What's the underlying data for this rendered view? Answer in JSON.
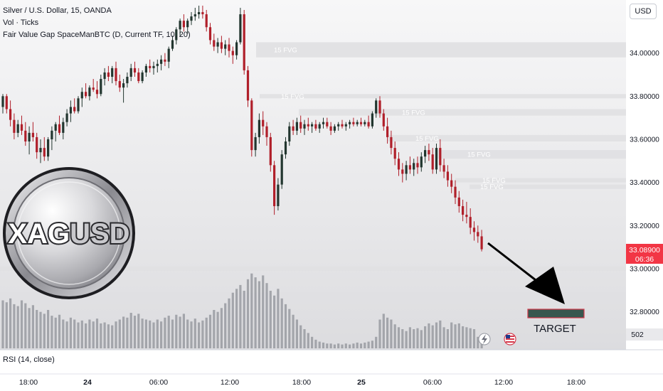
{
  "legend": {
    "symbol": "Silver / U.S. Dollar, 15, OANDA",
    "volume": "Vol · Ticks",
    "indicator": "Fair Value Gap SpaceManBTC (D, Current TF, 10, 20)",
    "rsi": "RSI (14, close)"
  },
  "currency_button": "USD",
  "price_axis": {
    "ticks": [
      "34.00000",
      "33.80000",
      "33.60000",
      "33.40000",
      "33.20000",
      "33.00000",
      "32.80000"
    ],
    "current_price": "33.08900",
    "countdown": "06:36",
    "volume_value": "502"
  },
  "time_axis": {
    "ticks": [
      "18:00",
      "24",
      "06:00",
      "12:00",
      "18:00",
      "25",
      "06:00",
      "12:00",
      "18:00"
    ]
  },
  "logo_text": {
    "part1": "XAG",
    "part2": "USD"
  },
  "target_label": "TARGET",
  "colors": {
    "background": "#ffffff",
    "up_candle": "#22362f",
    "down_candle": "#b01f2a",
    "fvg_zone": "#e0e0e2",
    "fvg_text": "#ffffff",
    "price_label": "#f23645",
    "target_box": "#37574f",
    "target_border": "#d5394b",
    "arrow": "#000000",
    "volume": "#8f9298"
  },
  "chart_data": {
    "type": "candlestick",
    "interval": "15",
    "ylim": [
      32.67,
      34.2
    ],
    "fvg_zones": [
      {
        "label": "15 FVG",
        "low": 33.98,
        "high": 34.05
      },
      {
        "label": "15 FVG",
        "low": 33.79,
        "high": 33.81
      },
      {
        "label": "15 FVG",
        "low": 33.71,
        "high": 33.74
      },
      {
        "label": "15 FVG",
        "low": 33.59,
        "high": 33.62
      },
      {
        "label": "15 FVG",
        "low": 33.51,
        "high": 33.55
      },
      {
        "label": "15 FVG",
        "low": 33.4,
        "high": 33.42
      },
      {
        "label": "15 FVG",
        "low": 33.37,
        "high": 33.39
      },
      {
        "label": "",
        "low": 32.99,
        "high": 33.01
      },
      {
        "label": "",
        "low": 32.84,
        "high": 32.89
      }
    ],
    "last_price": 33.089,
    "target_price": 32.79,
    "candles": [
      [
        33.75,
        33.81,
        33.72,
        33.8
      ],
      [
        33.8,
        33.81,
        33.72,
        33.74
      ],
      [
        33.74,
        33.78,
        33.66,
        33.69
      ],
      [
        33.69,
        33.72,
        33.6,
        33.63
      ],
      [
        33.63,
        33.69,
        33.61,
        33.67
      ],
      [
        33.67,
        33.71,
        33.62,
        33.64
      ],
      [
        33.64,
        33.68,
        33.57,
        33.59
      ],
      [
        33.59,
        33.66,
        33.53,
        33.63
      ],
      [
        33.63,
        33.68,
        33.59,
        33.61
      ],
      [
        33.61,
        33.63,
        33.51,
        33.54
      ],
      [
        33.54,
        33.6,
        33.49,
        33.56
      ],
      [
        33.56,
        33.61,
        33.5,
        33.52
      ],
      [
        33.52,
        33.61,
        33.5,
        33.6
      ],
      [
        33.6,
        33.66,
        33.55,
        33.64
      ],
      [
        33.64,
        33.68,
        33.59,
        33.67
      ],
      [
        33.67,
        33.71,
        33.62,
        33.63
      ],
      [
        33.63,
        33.7,
        33.6,
        33.68
      ],
      [
        33.68,
        33.74,
        33.66,
        33.72
      ],
      [
        33.72,
        33.78,
        33.68,
        33.75
      ],
      [
        33.75,
        33.79,
        33.72,
        33.73
      ],
      [
        33.73,
        33.8,
        33.72,
        33.79
      ],
      [
        33.79,
        33.84,
        33.75,
        33.82
      ],
      [
        33.82,
        33.86,
        33.79,
        33.8
      ],
      [
        33.8,
        33.85,
        33.78,
        33.84
      ],
      [
        33.84,
        33.88,
        33.82,
        33.83
      ],
      [
        33.83,
        33.87,
        33.79,
        33.81
      ],
      [
        33.81,
        33.9,
        33.8,
        33.88
      ],
      [
        33.88,
        33.93,
        33.85,
        33.91
      ],
      [
        33.91,
        33.94,
        33.87,
        33.89
      ],
      [
        33.89,
        33.94,
        33.86,
        33.93
      ],
      [
        33.93,
        33.96,
        33.85,
        33.87
      ],
      [
        33.87,
        33.9,
        33.82,
        33.84
      ],
      [
        33.84,
        33.88,
        33.77,
        33.86
      ],
      [
        33.86,
        33.91,
        33.84,
        33.89
      ],
      [
        33.89,
        33.95,
        33.87,
        33.93
      ],
      [
        33.93,
        33.96,
        33.89,
        33.91
      ],
      [
        33.91,
        33.93,
        33.86,
        33.87
      ],
      [
        33.87,
        33.92,
        33.86,
        33.91
      ],
      [
        33.91,
        33.95,
        33.89,
        33.94
      ],
      [
        33.94,
        33.97,
        33.91,
        33.93
      ],
      [
        33.93,
        33.96,
        33.9,
        33.94
      ],
      [
        33.94,
        33.97,
        33.91,
        33.95
      ],
      [
        33.95,
        33.99,
        33.92,
        33.97
      ],
      [
        33.97,
        34.0,
        33.94,
        33.96
      ],
      [
        33.96,
        34.03,
        33.93,
        34.02
      ],
      [
        34.02,
        34.08,
        34.01,
        34.06
      ],
      [
        34.06,
        34.12,
        34.04,
        34.11
      ],
      [
        34.11,
        34.16,
        34.08,
        34.15
      ],
      [
        34.15,
        34.18,
        34.1,
        34.12
      ],
      [
        34.12,
        34.16,
        34.09,
        34.15
      ],
      [
        34.15,
        34.19,
        34.13,
        34.17
      ],
      [
        34.17,
        34.21,
        34.15,
        34.18
      ],
      [
        34.18,
        34.22,
        34.16,
        34.19
      ],
      [
        34.19,
        34.22,
        34.16,
        34.18
      ],
      [
        34.18,
        34.2,
        34.1,
        34.12
      ],
      [
        34.12,
        34.14,
        34.04,
        34.06
      ],
      [
        34.06,
        34.09,
        34.01,
        34.03
      ],
      [
        34.03,
        34.07,
        34.0,
        34.05
      ],
      [
        34.05,
        34.08,
        34.0,
        34.02
      ],
      [
        34.02,
        34.06,
        33.99,
        34.04
      ],
      [
        34.04,
        34.07,
        33.98,
        34.01
      ],
      [
        34.01,
        34.03,
        33.95,
        33.99
      ],
      [
        33.99,
        34.06,
        33.97,
        34.05
      ],
      [
        34.05,
        34.21,
        34.04,
        34.18
      ],
      [
        34.18,
        34.2,
        33.9,
        33.92
      ],
      [
        33.92,
        33.94,
        33.75,
        33.78
      ],
      [
        33.78,
        33.79,
        33.52,
        33.55
      ],
      [
        33.55,
        33.63,
        33.52,
        33.61
      ],
      [
        33.61,
        33.72,
        33.58,
        33.69
      ],
      [
        33.69,
        33.73,
        33.62,
        33.66
      ],
      [
        33.66,
        33.68,
        33.57,
        33.61
      ],
      [
        33.61,
        33.63,
        33.45,
        33.48
      ],
      [
        33.48,
        33.5,
        33.25,
        33.29
      ],
      [
        33.29,
        33.42,
        33.27,
        33.39
      ],
      [
        33.39,
        33.55,
        33.37,
        33.53
      ],
      [
        33.53,
        33.61,
        33.51,
        33.59
      ],
      [
        33.59,
        33.68,
        33.57,
        33.66
      ],
      [
        33.66,
        33.69,
        33.62,
        33.64
      ],
      [
        33.64,
        33.7,
        33.62,
        33.68
      ],
      [
        33.68,
        33.71,
        33.63,
        33.65
      ],
      [
        33.65,
        33.69,
        33.62,
        33.67
      ],
      [
        33.67,
        33.7,
        33.64,
        33.66
      ],
      [
        33.66,
        33.68,
        33.63,
        33.67
      ],
      [
        33.67,
        33.69,
        33.64,
        33.65
      ],
      [
        33.65,
        33.68,
        33.63,
        33.67
      ],
      [
        33.67,
        33.7,
        33.65,
        33.68
      ],
      [
        33.68,
        33.7,
        33.65,
        33.66
      ],
      [
        33.66,
        33.68,
        33.62,
        33.64
      ],
      [
        33.64,
        33.67,
        33.63,
        33.66
      ],
      [
        33.66,
        33.68,
        33.64,
        33.67
      ],
      [
        33.67,
        33.69,
        33.65,
        33.66
      ],
      [
        33.66,
        33.68,
        33.64,
        33.67
      ],
      [
        33.67,
        33.69,
        33.65,
        33.68
      ],
      [
        33.68,
        33.7,
        33.66,
        33.67
      ],
      [
        33.67,
        33.69,
        33.66,
        33.68
      ],
      [
        33.68,
        33.7,
        33.66,
        33.67
      ],
      [
        33.67,
        33.69,
        33.66,
        33.68
      ],
      [
        33.68,
        33.71,
        33.65,
        33.66
      ],
      [
        33.66,
        33.73,
        33.65,
        33.72
      ],
      [
        33.72,
        33.79,
        33.7,
        33.78
      ],
      [
        33.78,
        33.8,
        33.7,
        33.72
      ],
      [
        33.72,
        33.74,
        33.64,
        33.66
      ],
      [
        33.66,
        33.7,
        33.58,
        33.61
      ],
      [
        33.61,
        33.64,
        33.53,
        33.56
      ],
      [
        33.56,
        33.59,
        33.48,
        33.51
      ],
      [
        33.51,
        33.54,
        33.43,
        33.46
      ],
      [
        33.46,
        33.49,
        33.4,
        33.44
      ],
      [
        33.44,
        33.5,
        33.41,
        33.48
      ],
      [
        33.48,
        33.52,
        33.44,
        33.46
      ],
      [
        33.46,
        33.51,
        33.43,
        33.49
      ],
      [
        33.49,
        33.52,
        33.44,
        33.47
      ],
      [
        33.47,
        33.54,
        33.45,
        33.52
      ],
      [
        33.52,
        33.57,
        33.49,
        33.55
      ],
      [
        33.55,
        33.58,
        33.5,
        33.53
      ],
      [
        33.53,
        33.56,
        33.44,
        33.46
      ],
      [
        33.46,
        33.58,
        33.44,
        33.56
      ],
      [
        33.56,
        33.6,
        33.45,
        33.48
      ],
      [
        33.48,
        33.51,
        33.42,
        33.45
      ],
      [
        33.45,
        33.48,
        33.38,
        33.41
      ],
      [
        33.41,
        33.44,
        33.35,
        33.38
      ],
      [
        33.38,
        33.41,
        33.3,
        33.33
      ],
      [
        33.33,
        33.36,
        33.26,
        33.29
      ],
      [
        33.29,
        33.32,
        33.22,
        33.25
      ],
      [
        33.25,
        33.31,
        33.21,
        33.24
      ],
      [
        33.24,
        33.28,
        33.16,
        33.19
      ],
      [
        33.19,
        33.22,
        33.13,
        33.17
      ],
      [
        33.17,
        33.2,
        33.12,
        33.15
      ],
      [
        33.15,
        33.18,
        33.08,
        33.09
      ]
    ],
    "volume": [
      0.5,
      0.48,
      0.52,
      0.46,
      0.44,
      0.5,
      0.47,
      0.42,
      0.45,
      0.4,
      0.38,
      0.36,
      0.4,
      0.34,
      0.32,
      0.35,
      0.3,
      0.28,
      0.32,
      0.3,
      0.27,
      0.29,
      0.26,
      0.3,
      0.28,
      0.31,
      0.26,
      0.27,
      0.25,
      0.24,
      0.28,
      0.3,
      0.33,
      0.32,
      0.37,
      0.34,
      0.36,
      0.31,
      0.3,
      0.29,
      0.27,
      0.3,
      0.28,
      0.32,
      0.34,
      0.3,
      0.35,
      0.33,
      0.36,
      0.3,
      0.28,
      0.31,
      0.27,
      0.29,
      0.32,
      0.35,
      0.4,
      0.38,
      0.42,
      0.47,
      0.52,
      0.58,
      0.62,
      0.66,
      0.6,
      0.72,
      0.78,
      0.74,
      0.7,
      0.76,
      0.68,
      0.6,
      0.55,
      0.62,
      0.52,
      0.46,
      0.41,
      0.35,
      0.3,
      0.24,
      0.2,
      0.16,
      0.12,
      0.09,
      0.07,
      0.06,
      0.05,
      0.05,
      0.04,
      0.05,
      0.04,
      0.05,
      0.04,
      0.05,
      0.06,
      0.05,
      0.06,
      0.07,
      0.08,
      0.12,
      0.3,
      0.36,
      0.32,
      0.3,
      0.25,
      0.22,
      0.2,
      0.18,
      0.22,
      0.2,
      0.21,
      0.19,
      0.23,
      0.26,
      0.24,
      0.27,
      0.29,
      0.22,
      0.2,
      0.27,
      0.25,
      0.26,
      0.23,
      0.22,
      0.21,
      0.2,
      0.12,
      0.1
    ]
  }
}
